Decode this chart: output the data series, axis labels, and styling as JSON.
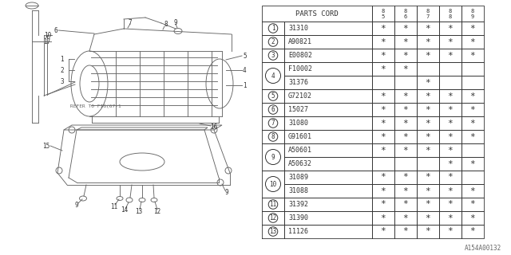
{
  "bg_color": "#ffffff",
  "watermark": "A154A00132",
  "lc": "#666666",
  "tc": "#333333",
  "table": {
    "columns": [
      "85",
      "86",
      "87",
      "88",
      "89"
    ],
    "rows": [
      {
        "code": "31310",
        "marks": [
          1,
          1,
          1,
          1,
          1
        ]
      },
      {
        "code": "A90821",
        "marks": [
          1,
          1,
          1,
          1,
          1
        ]
      },
      {
        "code": "E00802",
        "marks": [
          1,
          1,
          1,
          1,
          1
        ]
      },
      {
        "code": "F10002",
        "marks": [
          1,
          1,
          0,
          0,
          0
        ]
      },
      {
        "code": "31376",
        "marks": [
          0,
          0,
          1,
          0,
          0
        ]
      },
      {
        "code": "G72102",
        "marks": [
          1,
          1,
          1,
          1,
          1
        ]
      },
      {
        "code": "15027",
        "marks": [
          1,
          1,
          1,
          1,
          1
        ]
      },
      {
        "code": "31080",
        "marks": [
          1,
          1,
          1,
          1,
          1
        ]
      },
      {
        "code": "G91601",
        "marks": [
          1,
          1,
          1,
          1,
          1
        ]
      },
      {
        "code": "A50601",
        "marks": [
          1,
          1,
          1,
          1,
          0
        ]
      },
      {
        "code": "A50632",
        "marks": [
          0,
          0,
          0,
          1,
          1
        ]
      },
      {
        "code": "31089",
        "marks": [
          1,
          1,
          1,
          1,
          0
        ]
      },
      {
        "code": "31088",
        "marks": [
          1,
          1,
          1,
          1,
          1
        ]
      },
      {
        "code": "31392",
        "marks": [
          1,
          1,
          1,
          1,
          1
        ]
      },
      {
        "code": "31390",
        "marks": [
          1,
          1,
          1,
          1,
          1
        ]
      },
      {
        "code": "11126",
        "marks": [
          1,
          1,
          1,
          1,
          1
        ]
      }
    ]
  },
  "grouped_nums": [
    "1",
    "2",
    "3",
    "4",
    "5",
    "6",
    "7",
    "8",
    "9",
    "10",
    "11",
    "12",
    "13"
  ],
  "groups": [
    [
      0
    ],
    [
      1
    ],
    [
      2
    ],
    [
      3,
      4
    ],
    [
      5
    ],
    [
      6
    ],
    [
      7
    ],
    [
      8
    ],
    [
      9,
      10
    ],
    [
      11,
      12
    ],
    [
      13
    ],
    [
      14
    ],
    [
      15
    ]
  ]
}
